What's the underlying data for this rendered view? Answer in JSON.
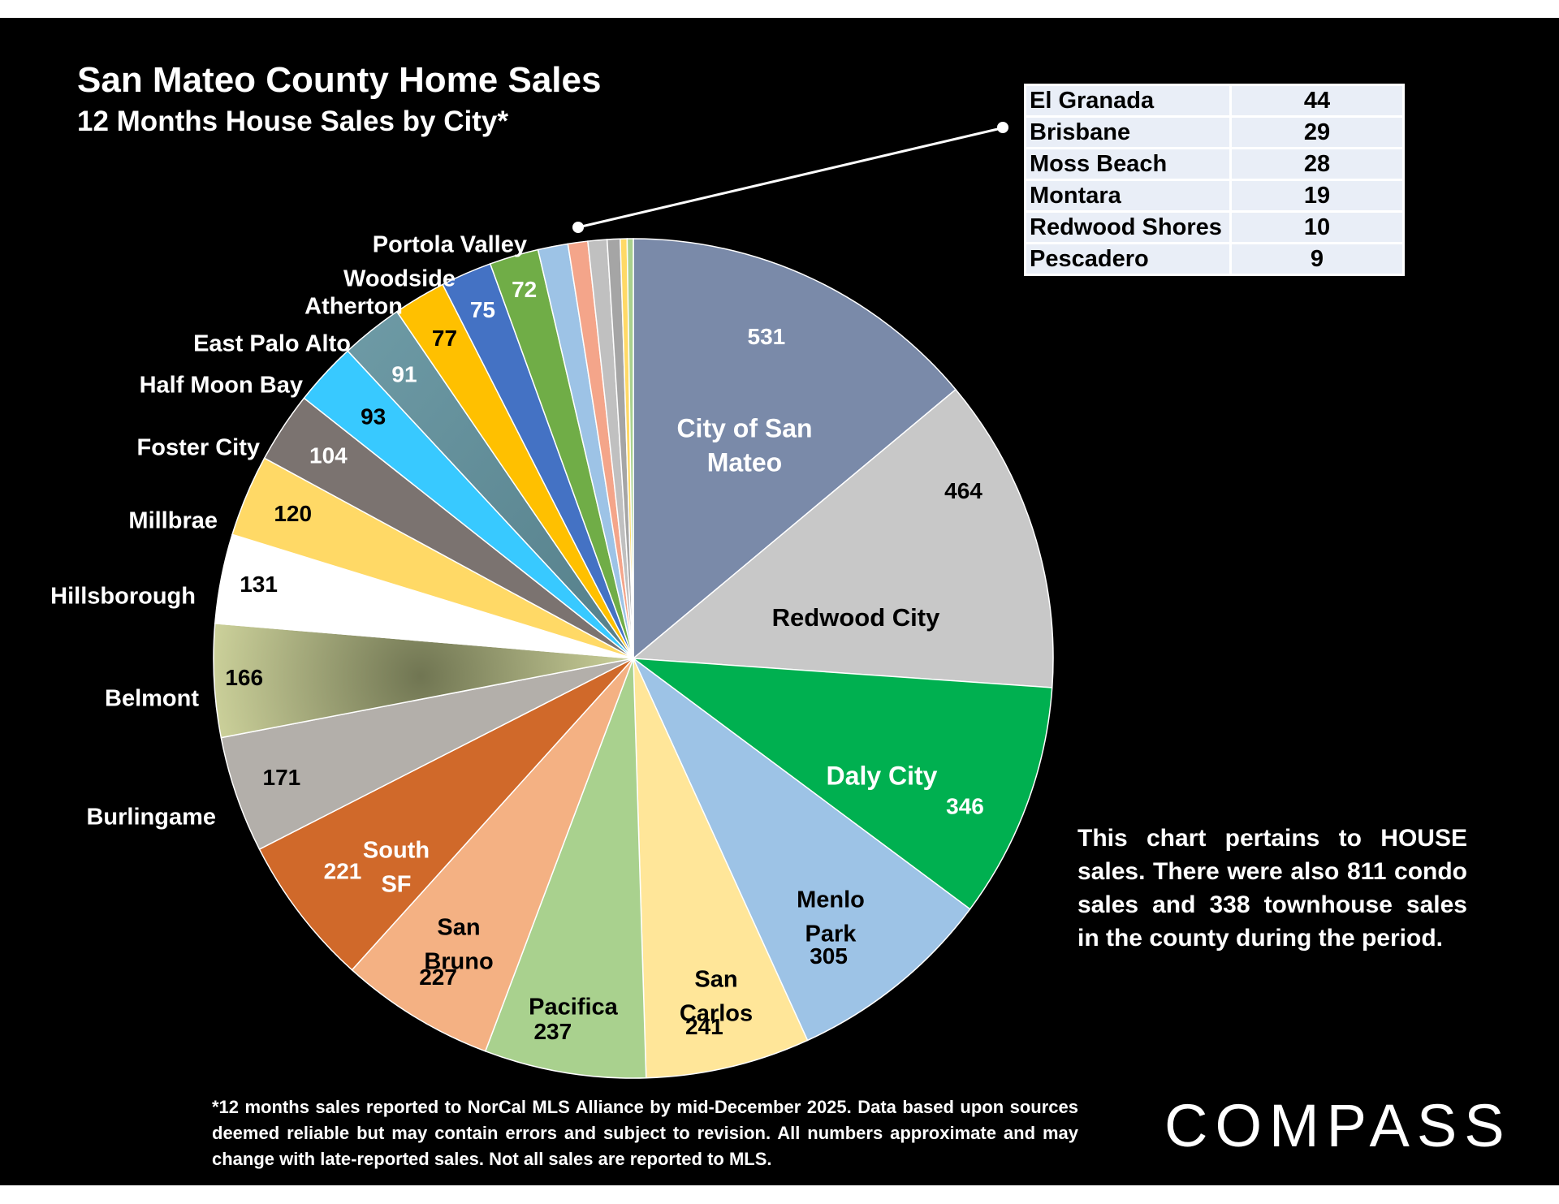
{
  "title": "San Mateo County Home Sales",
  "subtitle": "12 Months House Sales by City*",
  "chart_data": {
    "type": "pie",
    "title": "San Mateo County Home Sales",
    "subtitle": "12 Months House Sales by City*",
    "slices": [
      {
        "city": "City of San Mateo",
        "value": 531,
        "color": "#7a8aa9",
        "label_color": "#ffffff"
      },
      {
        "city": "Redwood City",
        "value": 464,
        "color": "#c8c8c8",
        "label_color": "#000000"
      },
      {
        "city": "Daly City",
        "value": 346,
        "color": "#00b050",
        "label_color": "#ffffff"
      },
      {
        "city": "Menlo Park",
        "value": 305,
        "color": "#9dc3e6",
        "label_color": "#000000"
      },
      {
        "city": "San Carlos",
        "value": 241,
        "color": "#ffe699",
        "label_color": "#000000"
      },
      {
        "city": "Pacifica",
        "value": 237,
        "color": "#a9d18e",
        "label_color": "#000000"
      },
      {
        "city": "San Bruno",
        "value": 227,
        "color": "#f4b183",
        "label_color": "#000000"
      },
      {
        "city": "South SF",
        "value": 221,
        "color": "#d0692a",
        "label_color": "#ffffff"
      },
      {
        "city": "Burlingame",
        "value": 171,
        "color": "#b3afaa",
        "label_color": "#000000"
      },
      {
        "city": "Belmont",
        "value": 166,
        "color": "#b6b77a",
        "label_color": "#000000"
      },
      {
        "city": "Hillsborough",
        "value": 131,
        "color": "#ffffff",
        "label_color": "#000000"
      },
      {
        "city": "Millbrae",
        "value": 120,
        "color": "#ffd966",
        "label_color": "#000000"
      },
      {
        "city": "Foster City",
        "value": 104,
        "color": "#7b7370",
        "label_color": "#ffffff"
      },
      {
        "city": "Half Moon Bay",
        "value": 93,
        "color": "#38c9ff",
        "label_color": "#000000"
      },
      {
        "city": "East Palo Alto",
        "value": 91,
        "color": "#6a95a1",
        "label_color": "#ffffff"
      },
      {
        "city": "Atherton",
        "value": 77,
        "color": "#ffc000",
        "label_color": "#000000"
      },
      {
        "city": "Woodside",
        "value": 75,
        "color": "#4472c4",
        "label_color": "#ffffff"
      },
      {
        "city": "Portola Valley",
        "value": 72,
        "color": "#70ad47",
        "label_color": "#ffffff"
      },
      {
        "city": "El Granada",
        "value": 44,
        "color": "#9dc3e6"
      },
      {
        "city": "Brisbane",
        "value": 29,
        "color": "#f4a58a"
      },
      {
        "city": "Moss Beach",
        "value": 28,
        "color": "#c0c0c0"
      },
      {
        "city": "Montara",
        "value": 19,
        "color": "#a5a5a5"
      },
      {
        "city": "Redwood Shores",
        "value": 10,
        "color": "#ffd966"
      },
      {
        "city": "Pescadero",
        "value": 9,
        "color": "#a9d18e"
      }
    ],
    "inset_table": [
      {
        "city": "El Granada",
        "value": 44
      },
      {
        "city": "Brisbane",
        "value": 29
      },
      {
        "city": "Moss Beach",
        "value": 28
      },
      {
        "city": "Montara",
        "value": 19
      },
      {
        "city": "Redwood Shores",
        "value": 10
      },
      {
        "city": "Pescadero",
        "value": 9
      }
    ]
  },
  "inside_labels": {
    "san_mateo": [
      "City of San",
      "Mateo"
    ],
    "redwood_city": [
      "Redwood City"
    ],
    "daly_city": [
      "Daly City"
    ],
    "menlo_park": [
      "Menlo",
      "Park"
    ],
    "san_carlos": [
      "San",
      "Carlos"
    ],
    "pacifica": [
      "Pacifica"
    ],
    "san_bruno": [
      "San",
      "Bruno"
    ],
    "south_sf": [
      "South",
      "SF"
    ]
  },
  "note": "This chart pertains to HOUSE sales. There were also 811 condo sales and 338 townhouse sales in the county during the period.",
  "footnote": "*12 months sales reported to NorCal MLS Alliance by mid-December 2025. Data based upon sources deemed reliable but may contain errors and subject to revision. All numbers approximate and may change with late-reported sales. Not all sales are reported to MLS.",
  "logo": "COMPASS"
}
